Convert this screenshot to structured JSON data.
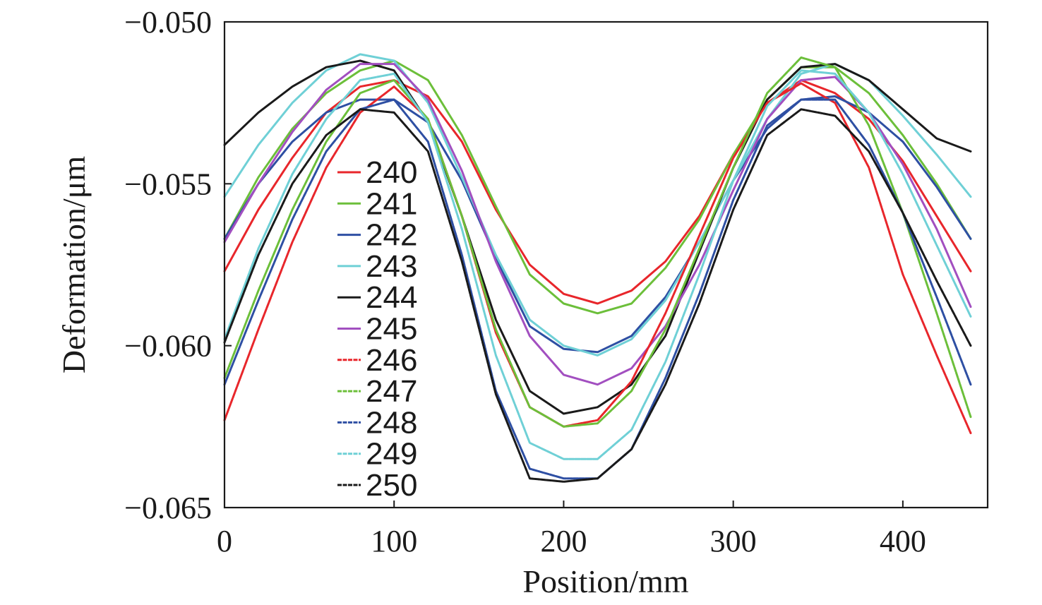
{
  "chart_data": {
    "type": "line",
    "title": "",
    "xlabel": "Position/mm",
    "ylabel": "Deformation/μm",
    "xlim": [
      0,
      450
    ],
    "ylim": [
      -0.065,
      -0.05
    ],
    "x_ticks": [
      0,
      100,
      200,
      300,
      400
    ],
    "y_ticks": [
      -0.05,
      -0.055,
      -0.06,
      -0.065
    ],
    "x_tick_labels": [
      "0",
      "100",
      "200",
      "300",
      "400"
    ],
    "y_tick_labels": [
      "−0.050",
      "−0.055",
      "−0.060",
      "−0.065"
    ],
    "grid": false,
    "legend_position": "center-left",
    "x": [
      0,
      20,
      40,
      60,
      80,
      100,
      120,
      140,
      160,
      180,
      200,
      220,
      240,
      260,
      280,
      300,
      320,
      340,
      360,
      380,
      400,
      420,
      440
    ],
    "series": [
      {
        "name": "240",
        "color": "#e8262b",
        "style": "solid",
        "values": [
          -0.0577,
          -0.0558,
          -0.0542,
          -0.0528,
          -0.052,
          -0.0518,
          -0.0523,
          -0.0537,
          -0.0558,
          -0.0575,
          -0.0584,
          -0.0587,
          -0.0583,
          -0.0574,
          -0.056,
          -0.0541,
          -0.0525,
          -0.0518,
          -0.0522,
          -0.053,
          -0.0543,
          -0.056,
          -0.0577
        ]
      },
      {
        "name": "241",
        "color": "#6cbf3a",
        "style": "solid",
        "values": [
          -0.0567,
          -0.0548,
          -0.0533,
          -0.0522,
          -0.0515,
          -0.0512,
          -0.0518,
          -0.0535,
          -0.0557,
          -0.0578,
          -0.0587,
          -0.059,
          -0.0587,
          -0.0576,
          -0.0561,
          -0.0541,
          -0.0524,
          -0.0514,
          -0.0514,
          -0.0522,
          -0.0535,
          -0.055,
          -0.0567
        ]
      },
      {
        "name": "242",
        "color": "#2e4fa3",
        "style": "solid",
        "values": [
          -0.0567,
          -0.055,
          -0.0537,
          -0.0528,
          -0.0524,
          -0.0524,
          -0.0531,
          -0.0549,
          -0.0573,
          -0.0594,
          -0.0601,
          -0.0602,
          -0.0597,
          -0.0585,
          -0.0568,
          -0.0549,
          -0.0533,
          -0.0524,
          -0.0523,
          -0.0528,
          -0.0537,
          -0.0551,
          -0.0567
        ]
      },
      {
        "name": "243",
        "color": "#6fd0d6",
        "style": "solid",
        "values": [
          -0.0554,
          -0.0538,
          -0.0525,
          -0.0515,
          -0.051,
          -0.0512,
          -0.0525,
          -0.0548,
          -0.0572,
          -0.0592,
          -0.06,
          -0.0603,
          -0.0598,
          -0.0586,
          -0.0568,
          -0.0549,
          -0.053,
          -0.0516,
          -0.0513,
          -0.0518,
          -0.0529,
          -0.0541,
          -0.0554
        ]
      },
      {
        "name": "244",
        "color": "#1a1a1a",
        "style": "solid",
        "values": [
          -0.0538,
          -0.0528,
          -0.052,
          -0.0514,
          -0.0512,
          -0.0515,
          -0.0531,
          -0.056,
          -0.0592,
          -0.0614,
          -0.0621,
          -0.0619,
          -0.0612,
          -0.0597,
          -0.0571,
          -0.0545,
          -0.0524,
          -0.0514,
          -0.0513,
          -0.0518,
          -0.0527,
          -0.0536,
          -0.054
        ]
      },
      {
        "name": "245",
        "color": "#a24fc0",
        "style": "solid",
        "values": [
          -0.0568,
          -0.055,
          -0.0534,
          -0.0521,
          -0.0513,
          -0.0513,
          -0.0524,
          -0.0546,
          -0.0574,
          -0.0597,
          -0.0609,
          -0.0612,
          -0.0607,
          -0.0594,
          -0.0575,
          -0.0552,
          -0.053,
          -0.0518,
          -0.0517,
          -0.0528,
          -0.0544,
          -0.0564,
          -0.0588
        ]
      },
      {
        "name": "246",
        "color": "#e8262b",
        "style": "dotted",
        "values": [
          -0.0623,
          -0.0595,
          -0.0568,
          -0.0545,
          -0.0528,
          -0.052,
          -0.053,
          -0.056,
          -0.0596,
          -0.0619,
          -0.0625,
          -0.0623,
          -0.0611,
          -0.059,
          -0.0566,
          -0.0542,
          -0.0525,
          -0.0519,
          -0.0525,
          -0.0545,
          -0.0578,
          -0.0603,
          -0.0627
        ]
      },
      {
        "name": "247",
        "color": "#6cbf3a",
        "style": "dotted",
        "values": [
          -0.061,
          -0.0583,
          -0.0558,
          -0.0537,
          -0.0522,
          -0.0518,
          -0.053,
          -0.056,
          -0.0595,
          -0.0619,
          -0.0625,
          -0.0624,
          -0.0614,
          -0.0595,
          -0.057,
          -0.0545,
          -0.0522,
          -0.0511,
          -0.0514,
          -0.0532,
          -0.0559,
          -0.059,
          -0.0622
        ]
      },
      {
        "name": "248",
        "color": "#2e4fa3",
        "style": "dotted",
        "values": [
          -0.0612,
          -0.0586,
          -0.0561,
          -0.054,
          -0.0527,
          -0.0524,
          -0.0537,
          -0.0572,
          -0.0614,
          -0.0638,
          -0.0641,
          -0.0641,
          -0.0632,
          -0.061,
          -0.0584,
          -0.0555,
          -0.0532,
          -0.0524,
          -0.0524,
          -0.0538,
          -0.0559,
          -0.0585,
          -0.0612
        ]
      },
      {
        "name": "249",
        "color": "#6fd0d6",
        "style": "dotted",
        "values": [
          -0.0598,
          -0.057,
          -0.0547,
          -0.053,
          -0.0518,
          -0.0516,
          -0.0531,
          -0.0564,
          -0.0603,
          -0.063,
          -0.0635,
          -0.0635,
          -0.0626,
          -0.0605,
          -0.0578,
          -0.0549,
          -0.0526,
          -0.0515,
          -0.0516,
          -0.0528,
          -0.0547,
          -0.0569,
          -0.0591
        ]
      },
      {
        "name": "250",
        "color": "#1a1a1a",
        "style": "dotted",
        "values": [
          -0.0599,
          -0.0572,
          -0.055,
          -0.0535,
          -0.0527,
          -0.0528,
          -0.054,
          -0.0574,
          -0.0615,
          -0.0641,
          -0.0642,
          -0.0641,
          -0.0632,
          -0.0612,
          -0.0587,
          -0.0558,
          -0.0535,
          -0.0527,
          -0.0529,
          -0.054,
          -0.0559,
          -0.058,
          -0.06
        ]
      }
    ]
  }
}
